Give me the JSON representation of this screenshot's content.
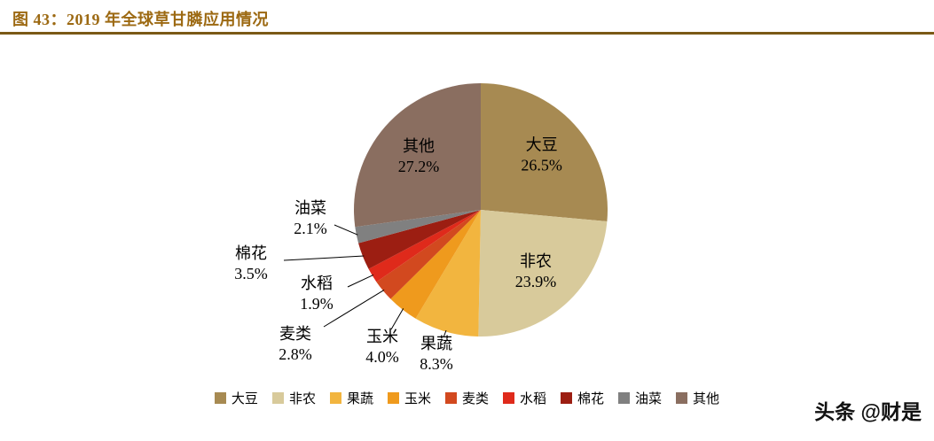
{
  "header": {
    "title": "图 43：2019 年全球草甘膦应用情况"
  },
  "watermark": "头条 @财是",
  "chart_data": {
    "type": "pie",
    "title": "2019 年全球草甘膦应用情况",
    "direction": "clockwise",
    "start_angle_deg": 0,
    "legend_position": "bottom",
    "slices": [
      {
        "label": "大豆",
        "value": 26.5,
        "display": "26.5%",
        "color": "#a78a52"
      },
      {
        "label": "非农",
        "value": 23.9,
        "display": "23.9%",
        "color": "#d8ca9b"
      },
      {
        "label": "果蔬",
        "value": 8.3,
        "display": "8.3%",
        "color": "#f2b53f"
      },
      {
        "label": "玉米",
        "value": 4.0,
        "display": "4.0%",
        "color": "#ef9a1d"
      },
      {
        "label": "麦类",
        "value": 2.8,
        "display": "2.8%",
        "color": "#d2491f"
      },
      {
        "label": "水稻",
        "value": 1.9,
        "display": "1.9%",
        "color": "#df2a1b"
      },
      {
        "label": "棉花",
        "value": 3.5,
        "display": "3.5%",
        "color": "#9c1e12"
      },
      {
        "label": "油菜",
        "value": 2.1,
        "display": "2.1%",
        "color": "#808080"
      },
      {
        "label": "其他",
        "value": 27.2,
        "display": "27.2%",
        "color": "#8a6e60"
      }
    ]
  }
}
